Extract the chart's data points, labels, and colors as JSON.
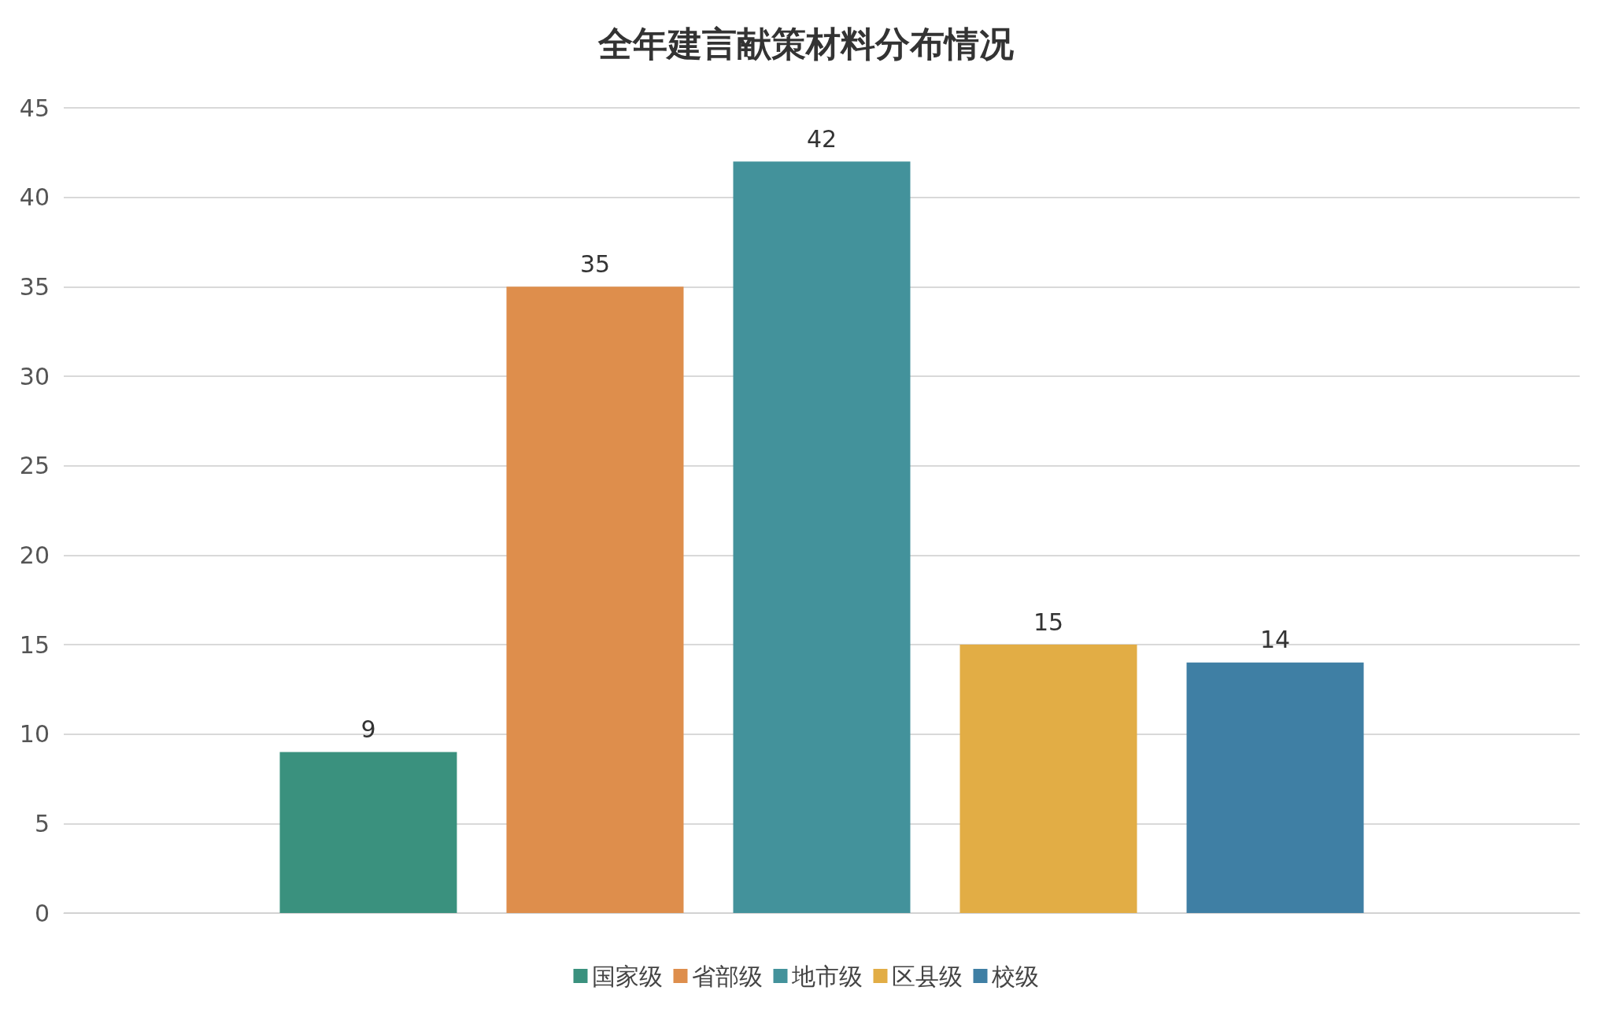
{
  "chart_data": {
    "type": "bar",
    "title": "全年建言献策材料分布情况",
    "categories": [
      null
    ],
    "series": [
      {
        "name": "国家级",
        "color": "#3a917e",
        "values": [
          9
        ]
      },
      {
        "name": "省部级",
        "color": "#de8e4c",
        "values": [
          35
        ]
      },
      {
        "name": "地市级",
        "color": "#43929b",
        "values": [
          42
        ]
      },
      {
        "name": "区县级",
        "color": "#e2ad45",
        "values": [
          15
        ]
      },
      {
        "name": "校级",
        "color": "#3f7fa4",
        "values": [
          14
        ]
      }
    ],
    "ylim": [
      0,
      45
    ],
    "yticks": [
      0,
      5,
      10,
      15,
      20,
      25,
      30,
      35,
      40,
      45
    ],
    "grid": "y",
    "legend": "bottom",
    "data_labels": true
  }
}
